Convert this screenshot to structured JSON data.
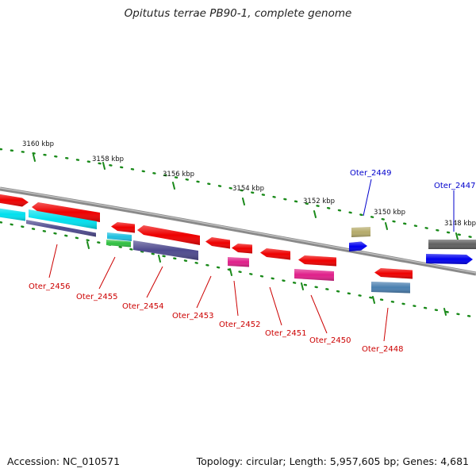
{
  "title": "Opitutus terrae PB90-1, complete genome",
  "footer": {
    "accession": "Accession: NC_010571",
    "summary": "Topology: circular; Length: 5,957,605 bp; Genes: 4,681"
  },
  "colors": {
    "backbone": "#8a8a8a",
    "tick": "#1a8a1a",
    "label_forward": "#0000cc",
    "label_reverse": "#cc0000",
    "leader_forward": "#0000cc",
    "leader_reverse": "#cc0000"
  },
  "kbp_labels": [
    "3160 kbp",
    "3158 kbp",
    "3156 kbp",
    "3154 kbp",
    "3152 kbp",
    "3150 kbp",
    "3148 kbp"
  ],
  "gene_labels": {
    "forward": [
      "Oter_2449",
      "Oter_2447"
    ],
    "reverse": [
      "Oter_2456",
      "Oter_2455",
      "Oter_2454",
      "Oter_2453",
      "Oter_2452",
      "Oter_2451",
      "Oter_2450",
      "Oter_2448"
    ]
  },
  "genes": [
    {
      "name": "Oter_2447",
      "strand": "forward",
      "color": "#606060"
    },
    {
      "name": "Oter_2447-cog",
      "strand": "forward",
      "color": "#0000ee"
    },
    {
      "name": "Oter_2449",
      "strand": "forward",
      "color": "#b5ab6a"
    },
    {
      "name": "Oter_2449-cog",
      "strand": "forward",
      "color": "#0000ee"
    },
    {
      "name": "Oter_2448",
      "strand": "reverse",
      "color": "#ee0000"
    },
    {
      "name": "Oter_2448-cog",
      "strand": "reverse",
      "color": "#4a7fb0"
    },
    {
      "name": "Oter_2450",
      "strand": "reverse",
      "color": "#ee0000"
    },
    {
      "name": "Oter_2450-cog",
      "strand": "reverse",
      "color": "#e0208a"
    },
    {
      "name": "Oter_2451",
      "strand": "reverse",
      "color": "#ee0000"
    },
    {
      "name": "Oter_2452",
      "strand": "reverse",
      "color": "#ee0000"
    },
    {
      "name": "Oter_2452-cog",
      "strand": "reverse",
      "color": "#e0208a"
    },
    {
      "name": "Oter_2453",
      "strand": "reverse",
      "color": "#ee0000"
    },
    {
      "name": "Oter_2454",
      "strand": "reverse",
      "color": "#ee0000"
    },
    {
      "name": "Oter_2454-cog",
      "strand": "reverse",
      "color": "#4e4a8e"
    },
    {
      "name": "Oter_2455",
      "strand": "reverse",
      "color": "#ee0000"
    },
    {
      "name": "Oter_2455-cog-a",
      "strand": "reverse",
      "color": "#20c0e0"
    },
    {
      "name": "Oter_2455-cog-b",
      "strand": "reverse",
      "color": "#30c040"
    },
    {
      "name": "Oter_2456",
      "strand": "reverse",
      "color": "#ee0000"
    },
    {
      "name": "Oter_2456-cog",
      "strand": "reverse",
      "color": "#00e0ee"
    },
    {
      "name": "Oter_2457",
      "strand": "reverse",
      "color": "#ee0000"
    },
    {
      "name": "Oter_2457-cog",
      "strand": "reverse",
      "color": "#00e0ee"
    }
  ]
}
